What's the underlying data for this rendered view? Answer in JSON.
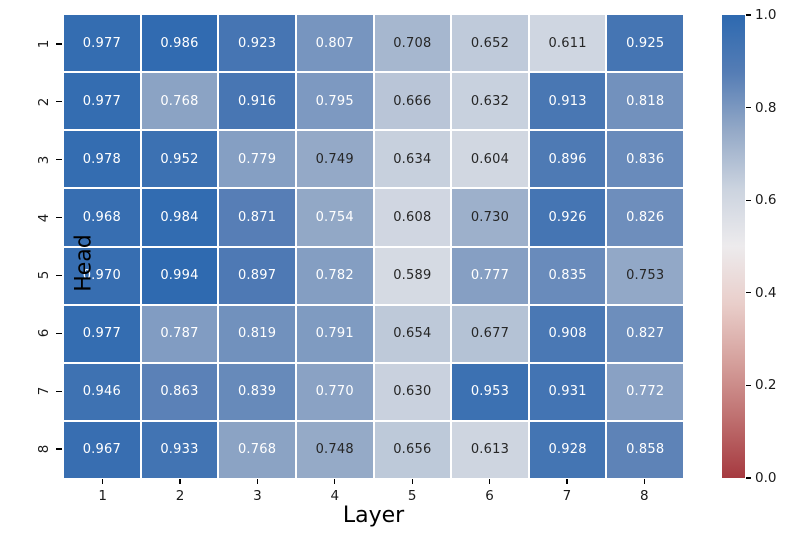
{
  "chart_data": {
    "type": "heatmap",
    "xlabel": "Layer",
    "ylabel": "Head",
    "x_tick_labels": [
      "1",
      "2",
      "3",
      "4",
      "5",
      "6",
      "7",
      "8"
    ],
    "y_tick_labels": [
      "1",
      "2",
      "3",
      "4",
      "5",
      "6",
      "7",
      "8"
    ],
    "values": [
      [
        0.977,
        0.986,
        0.923,
        0.807,
        0.708,
        0.652,
        0.611,
        0.925
      ],
      [
        0.977,
        0.768,
        0.916,
        0.795,
        0.666,
        0.632,
        0.913,
        0.818
      ],
      [
        0.978,
        0.952,
        0.779,
        0.749,
        0.634,
        0.604,
        0.896,
        0.836
      ],
      [
        0.968,
        0.984,
        0.871,
        0.754,
        0.608,
        0.73,
        0.926,
        0.826
      ],
      [
        0.97,
        0.994,
        0.897,
        0.782,
        0.589,
        0.777,
        0.835,
        0.753
      ],
      [
        0.977,
        0.787,
        0.819,
        0.791,
        0.654,
        0.677,
        0.908,
        0.827
      ],
      [
        0.946,
        0.863,
        0.839,
        0.77,
        0.63,
        0.953,
        0.931,
        0.772
      ],
      [
        0.967,
        0.933,
        0.768,
        0.748,
        0.656,
        0.613,
        0.928,
        0.858
      ]
    ],
    "value_decimals": 3,
    "vmin": 0.0,
    "vmax": 1.0,
    "grid_line_color": "#ffffff",
    "annotation_colors": {
      "light_text": "#ffffff",
      "dark_text": "#262626",
      "white_text_min_value": 0.7535
    },
    "colormap": {
      "description": "diverging red-white-blue (vlag-like)",
      "stops": [
        [
          0.0,
          "#a63a40"
        ],
        [
          0.125,
          "#be6e6e"
        ],
        [
          0.25,
          "#d5a09c"
        ],
        [
          0.375,
          "#e9ceca"
        ],
        [
          0.5,
          "#edebed"
        ],
        [
          0.625,
          "#cbd3df"
        ],
        [
          0.75,
          "#94a9c7"
        ],
        [
          0.875,
          "#557db5"
        ],
        [
          1.0,
          "#2d69b0"
        ]
      ]
    },
    "colorbar": {
      "tick_labels": [
        "1.0",
        "0.8",
        "0.6",
        "0.4",
        "0.2",
        "0.0"
      ],
      "position": "right"
    },
    "legend": null,
    "title": ""
  }
}
